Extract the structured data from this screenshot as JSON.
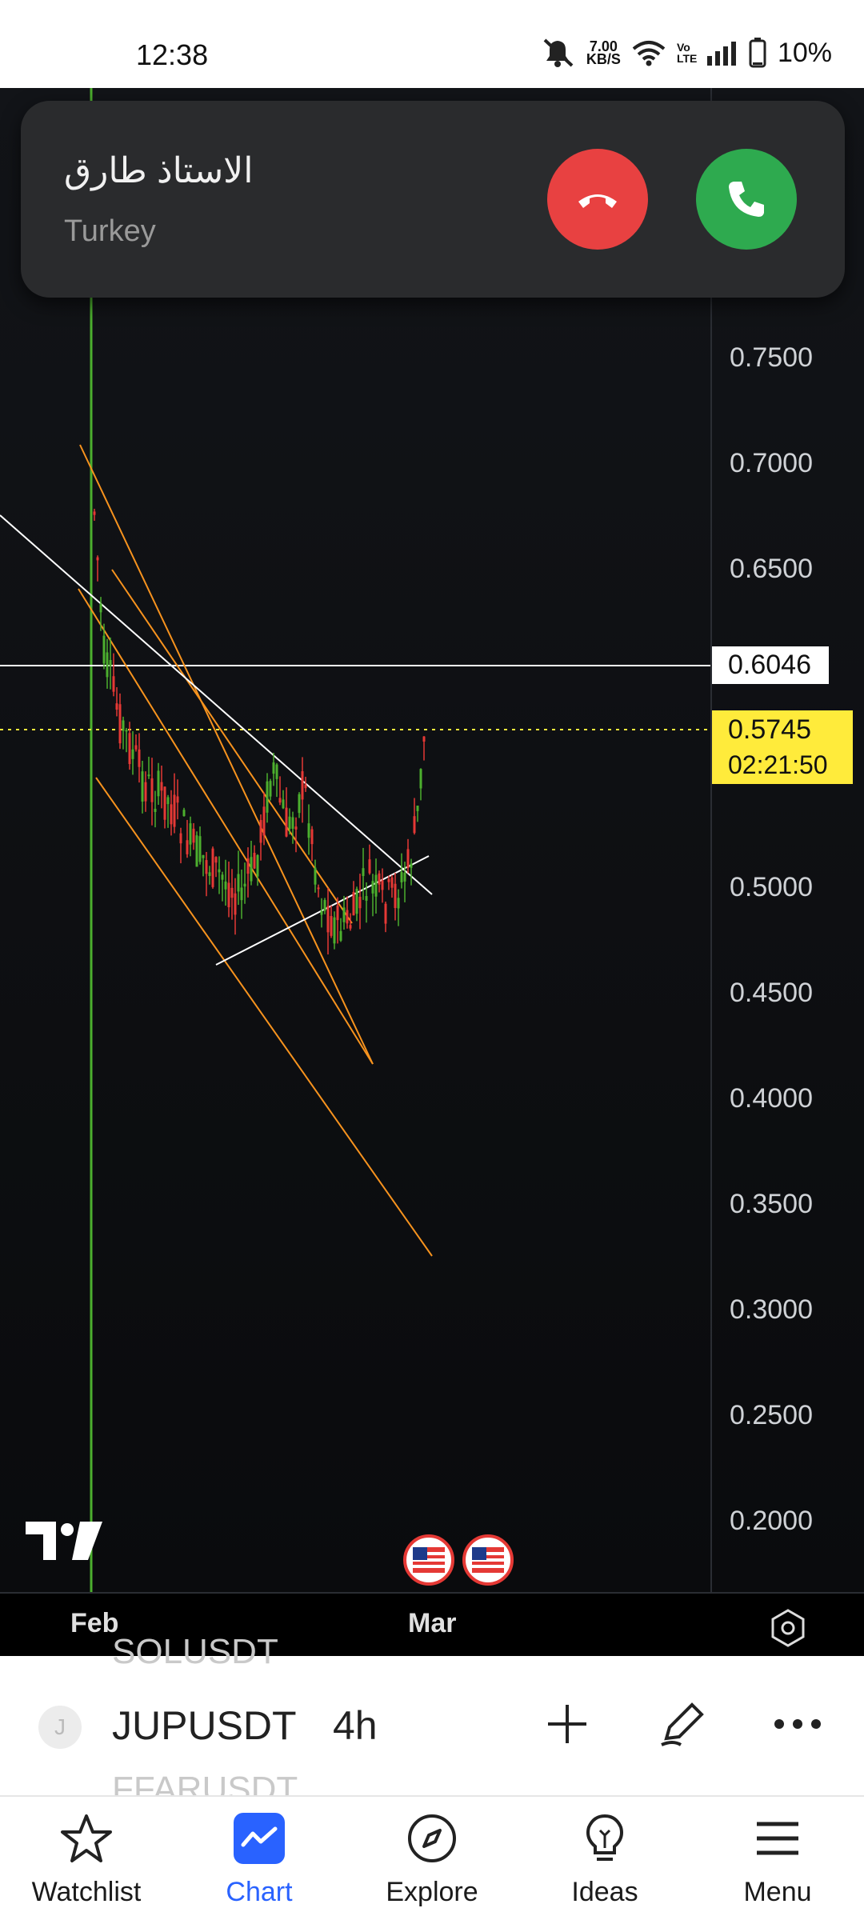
{
  "status_bar": {
    "time": "12:38",
    "net_speed_value": "7.00",
    "net_speed_unit": "KB/S",
    "volte": "Vo LTE",
    "battery": "10%"
  },
  "call": {
    "caller_name": "الاستاذ طارق",
    "caller_location": "Turkey"
  },
  "chart": {
    "y_ticks": [
      "0.7500",
      "0.7000",
      "0.6500",
      "0.5000",
      "0.4500",
      "0.4000",
      "0.3500",
      "0.3000",
      "0.2500",
      "0.2000"
    ],
    "horizontal_line_price": "0.6046",
    "current_price": "0.5745",
    "countdown": "02:21:50",
    "x_ticks": [
      "Feb",
      "Mar"
    ],
    "colors": {
      "up": "#4caf2e",
      "down": "#e53935",
      "channel": "#f7931e",
      "trendline": "#ffffff",
      "price_tag": "#ffeb3b"
    }
  },
  "symbol_bar": {
    "prev_symbol": "SOLUSDT",
    "symbol": "JUPUSDT",
    "interval": "4h",
    "next_symbol": "FFARUSDT",
    "badge_letter": "J"
  },
  "nav": {
    "watchlist": "Watchlist",
    "chart": "Chart",
    "explore": "Explore",
    "ideas": "Ideas",
    "menu": "Menu"
  }
}
